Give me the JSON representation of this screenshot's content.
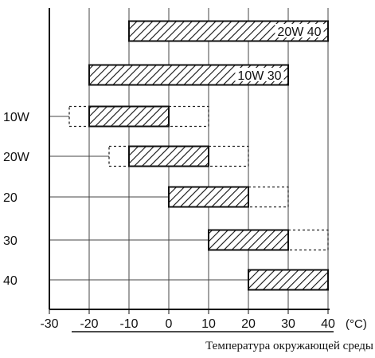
{
  "chart_data": {
    "type": "range-bar",
    "xlabel": "Температура окружающей среды",
    "unit_label": "(°C)",
    "x_ticks": [
      -30,
      -20,
      -10,
      0,
      10,
      20,
      30,
      40
    ],
    "xlim": [
      -30,
      40
    ],
    "grid": true,
    "bars": [
      {
        "label": "",
        "bar_label": "20W 40",
        "solid": [
          -10,
          40
        ],
        "dashed_left": null,
        "dashed_right": null
      },
      {
        "label": "",
        "bar_label": "10W 30",
        "solid": [
          -20,
          30
        ],
        "dashed_left": null,
        "dashed_right": null
      },
      {
        "label": "10W",
        "bar_label": "",
        "solid": [
          -20,
          0
        ],
        "dashed_left": [
          -25,
          -20
        ],
        "dashed_right": [
          0,
          10
        ]
      },
      {
        "label": "20W",
        "bar_label": "",
        "solid": [
          -10,
          10
        ],
        "dashed_left": [
          -15,
          -10
        ],
        "dashed_right": [
          10,
          20
        ]
      },
      {
        "label": "20",
        "bar_label": "",
        "solid": [
          0,
          20
        ],
        "dashed_left": null,
        "dashed_right": [
          20,
          30
        ]
      },
      {
        "label": "30",
        "bar_label": "",
        "solid": [
          10,
          30
        ],
        "dashed_left": null,
        "dashed_right": [
          30,
          40
        ]
      },
      {
        "label": "40",
        "bar_label": "",
        "solid": [
          20,
          40
        ],
        "dashed_left": null,
        "dashed_right": null
      }
    ]
  }
}
